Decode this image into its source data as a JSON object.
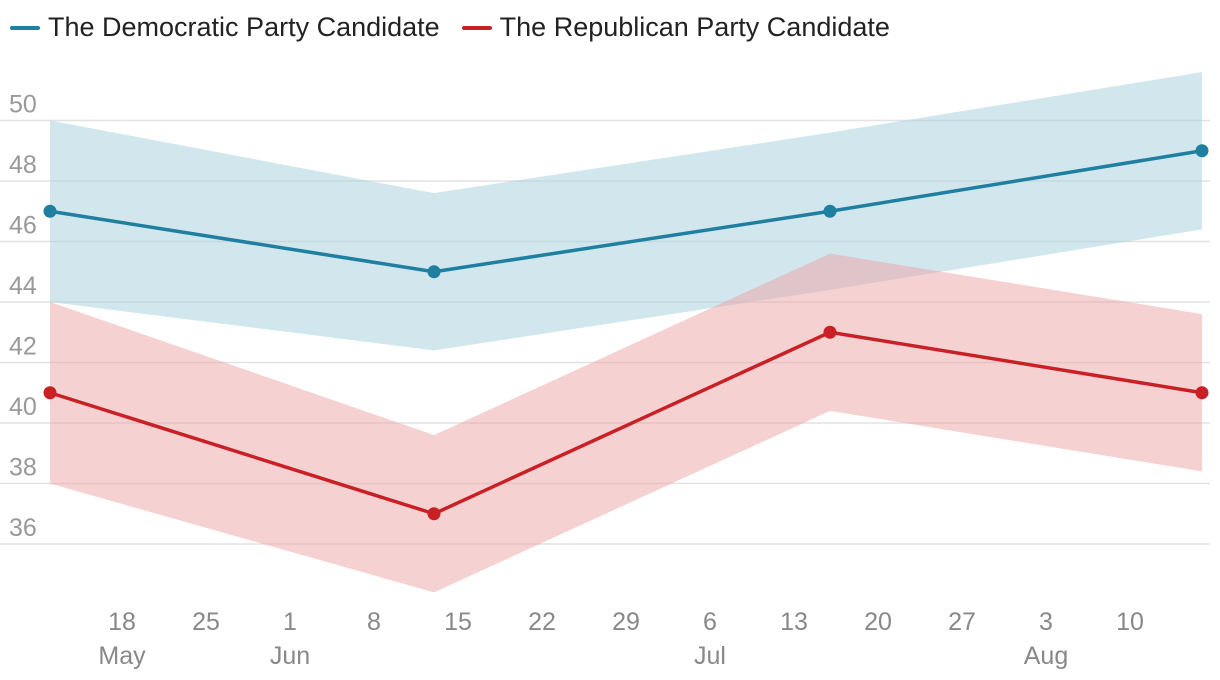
{
  "chart_data": {
    "type": "line",
    "title": "",
    "xlabel": "",
    "ylabel": "",
    "ylim": [
      34,
      52
    ],
    "yticks": [
      36,
      38,
      40,
      42,
      44,
      46,
      48,
      50
    ],
    "x_dates": [
      "2024-05-12",
      "2024-06-13",
      "2024-07-16",
      "2024-08-16"
    ],
    "x_tick_dates": [
      "2024-05-18",
      "2024-05-25",
      "2024-06-01",
      "2024-06-08",
      "2024-06-15",
      "2024-06-22",
      "2024-06-29",
      "2024-07-06",
      "2024-07-13",
      "2024-07-20",
      "2024-07-27",
      "2024-08-03",
      "2024-08-10"
    ],
    "x_tick_labels": [
      "18",
      "25",
      "1",
      "8",
      "15",
      "22",
      "29",
      "6",
      "13",
      "20",
      "27",
      "3",
      "10"
    ],
    "month_labels": [
      {
        "label": "May",
        "date": "2024-05-18"
      },
      {
        "label": "Jun",
        "date": "2024-06-01"
      },
      {
        "label": "Jul",
        "date": "2024-07-06"
      },
      {
        "label": "Aug",
        "date": "2024-08-03"
      }
    ],
    "series": [
      {
        "name": "The Democratic Party Candidate",
        "color": "#1f7fa0",
        "band_color": "#a9cfdd",
        "values": [
          47,
          45,
          47,
          49
        ],
        "lower": [
          44,
          42.4,
          44.4,
          46.4
        ],
        "upper": [
          50,
          47.6,
          49.6,
          51.6
        ]
      },
      {
        "name": "The Republican Party Candidate",
        "color": "#c92026",
        "band_color": "#eca6a8",
        "values": [
          41,
          37,
          43,
          41
        ],
        "lower": [
          38,
          34.4,
          40.4,
          38.4
        ],
        "upper": [
          44,
          39.6,
          45.6,
          43.6
        ]
      }
    ]
  }
}
